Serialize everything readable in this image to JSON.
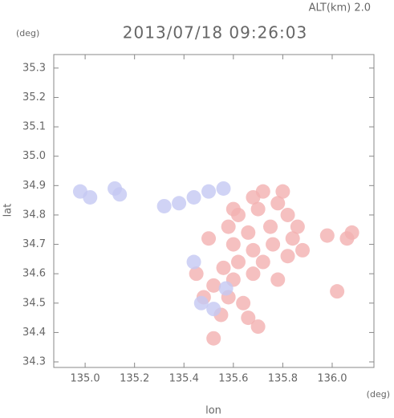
{
  "chart_data": {
    "type": "scatter",
    "title": "2013/07/18 09:26:03",
    "subtitle": "ALT(km) 2.0",
    "x_label": "lon",
    "y_label": "lat",
    "x_unit": "(deg)",
    "y_unit": "(deg)",
    "xlim": [
      134.873,
      136.169
    ],
    "ylim": [
      34.281,
      35.346
    ],
    "xticks": [
      {
        "value": 135,
        "label": "135.0"
      },
      135.2,
      135.4,
      135.6,
      135.8,
      {
        "value": 136,
        "label": "136.0"
      }
    ],
    "yticks": [
      34.3,
      34.4,
      34.5,
      34.6,
      34.7,
      34.8,
      34.9,
      {
        "value": 35,
        "label": "35.0"
      },
      35.1,
      35.2,
      35.3
    ],
    "series": [
      {
        "color": "#f2b0b0",
        "x": [
          135.62,
          135.7,
          135.78,
          135.82,
          135.75,
          135.66,
          135.6,
          135.68,
          135.76,
          135.84,
          135.82,
          135.72,
          135.62,
          135.56,
          135.6,
          135.68,
          135.52,
          135.58,
          135.64,
          135.66,
          135.55,
          135.48,
          135.7,
          135.86,
          135.8,
          135.72,
          135.68,
          135.58,
          135.5,
          135.45,
          135.78,
          136.06,
          136.08,
          135.98,
          136.02,
          135.52,
          135.6,
          135.88
        ],
        "values": [
          34.8,
          34.82,
          34.84,
          34.8,
          34.76,
          34.74,
          34.7,
          34.68,
          34.7,
          34.72,
          34.66,
          34.64,
          34.64,
          34.62,
          34.58,
          34.6,
          34.56,
          34.52,
          34.5,
          34.45,
          34.46,
          34.52,
          34.42,
          34.76,
          34.88,
          34.88,
          34.86,
          34.76,
          34.72,
          34.6,
          34.58,
          34.72,
          34.74,
          34.73,
          34.54,
          34.38,
          34.82,
          34.68
        ]
      },
      {
        "color": "#c4c8f2",
        "x": [
          134.98,
          135.02,
          135.12,
          135.14,
          135.32,
          135.38,
          135.44,
          135.5,
          135.56,
          135.47,
          135.52,
          135.57,
          135.44
        ],
        "values": [
          34.88,
          34.86,
          34.89,
          34.87,
          34.83,
          34.84,
          34.86,
          34.88,
          34.89,
          34.5,
          34.48,
          34.55,
          34.64
        ]
      }
    ]
  }
}
